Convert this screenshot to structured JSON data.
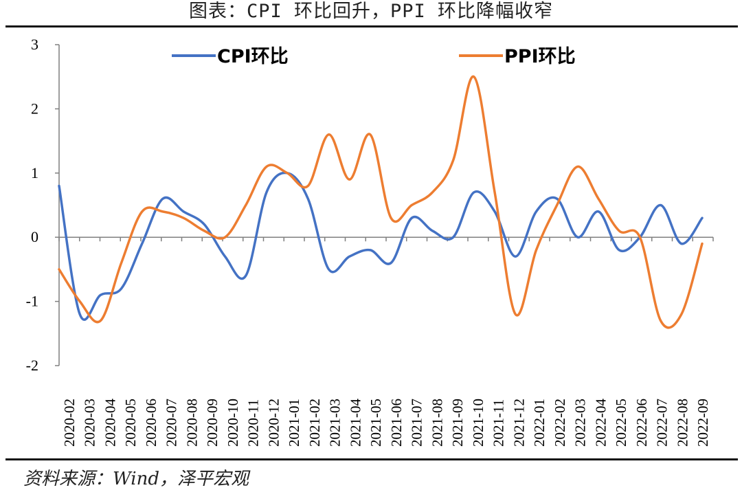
{
  "header": {
    "title": "图表：CPI 环比回升，PPI 环比降幅收窄"
  },
  "footer": {
    "source": "资料来源：Wind，泽平宏观"
  },
  "chart_data": {
    "type": "line",
    "title": "图表：CPI 环比回升，PPI 环比降幅收窄",
    "xlabel": "",
    "ylabel": "",
    "ylim": [
      -2,
      3
    ],
    "yticks": [
      "3",
      "2",
      "1",
      "0",
      "-1",
      "-2"
    ],
    "ytick_values": [
      3,
      2,
      1,
      0,
      -1,
      -2
    ],
    "grid": false,
    "legend_position": "top",
    "categories": [
      "2020-02",
      "2020-03",
      "2020-04",
      "2020-05",
      "2020-06",
      "2020-07",
      "2020-08",
      "2020-09",
      "2020-10",
      "2020-11",
      "2020-12",
      "2021-01",
      "2021-02",
      "2021-03",
      "2021-04",
      "2021-05",
      "2021-06",
      "2021-07",
      "2021-08",
      "2021-09",
      "2021-10",
      "2021-11",
      "2021-12",
      "2022-01",
      "2022-02",
      "2022-03",
      "2022-04",
      "2022-05",
      "2022-06",
      "2022-07",
      "2022-08",
      "2022-09"
    ],
    "series": [
      {
        "name": "CPI环比",
        "color": "#4472C4",
        "values": [
          0.8,
          -1.2,
          -0.9,
          -0.8,
          -0.1,
          0.6,
          0.4,
          0.2,
          -0.3,
          -0.6,
          0.7,
          1.0,
          0.6,
          -0.5,
          -0.3,
          -0.2,
          -0.4,
          0.3,
          0.1,
          0.0,
          0.7,
          0.4,
          -0.3,
          0.4,
          0.6,
          0.0,
          0.4,
          -0.2,
          0.0,
          0.5,
          -0.1,
          0.3
        ]
      },
      {
        "name": "PPI环比",
        "color": "#ED7D31",
        "values": [
          -0.5,
          -1.0,
          -1.3,
          -0.4,
          0.4,
          0.4,
          0.3,
          0.1,
          0.0,
          0.5,
          1.1,
          1.0,
          0.8,
          1.6,
          0.9,
          1.6,
          0.3,
          0.5,
          0.7,
          1.2,
          2.5,
          0.7,
          -1.2,
          -0.2,
          0.5,
          1.1,
          0.6,
          0.1,
          0.0,
          -1.3,
          -1.2,
          -0.1
        ]
      }
    ]
  }
}
